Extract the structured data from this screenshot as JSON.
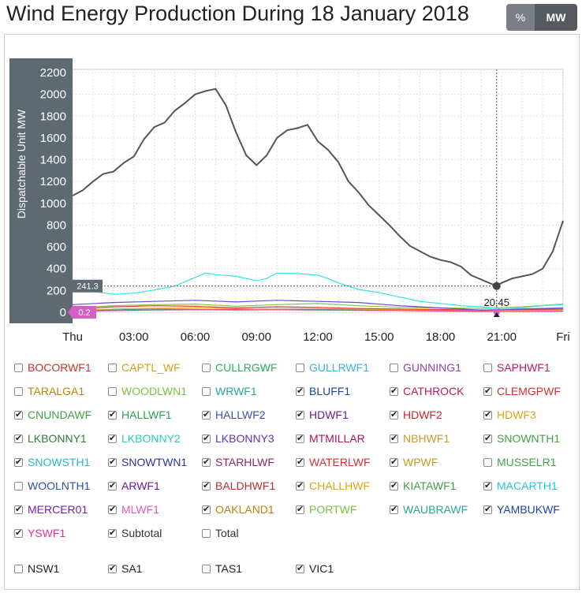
{
  "title": "Wind Energy Production During 18 January 2018",
  "toggle": {
    "percent_label": "%",
    "mw_label": "MW"
  },
  "chart_data": {
    "type": "line",
    "ylabel": "Dispatchable Unit MW",
    "ylim": [
      0,
      2200
    ],
    "yticks": [
      0,
      200,
      400,
      600,
      800,
      1000,
      1200,
      1400,
      1600,
      1800,
      2000,
      2200
    ],
    "xlim": [
      0,
      24
    ],
    "xticks": [
      {
        "x": 0,
        "label": "Thu"
      },
      {
        "x": 3,
        "label": "03:00"
      },
      {
        "x": 6,
        "label": "06:00"
      },
      {
        "x": 9,
        "label": "09:00"
      },
      {
        "x": 12,
        "label": "12:00"
      },
      {
        "x": 15,
        "label": "15:00"
      },
      {
        "x": 18,
        "label": "18:00"
      },
      {
        "x": 21,
        "label": "21:00"
      },
      {
        "x": 24,
        "label": "Fri"
      }
    ],
    "grid": true,
    "crosshair": {
      "x": 20.75,
      "x_label": "20:45",
      "y_label_upper": "241.3",
      "y_label_lower": "0.2"
    },
    "series": [
      {
        "color": "#555555",
        "points": [
          [
            0,
            1070
          ],
          [
            0.5,
            1120
          ],
          [
            1,
            1200
          ],
          [
            1.5,
            1270
          ],
          [
            2,
            1290
          ],
          [
            2.5,
            1370
          ],
          [
            3,
            1430
          ],
          [
            3.5,
            1590
          ],
          [
            4,
            1700
          ],
          [
            4.5,
            1740
          ],
          [
            5,
            1850
          ],
          [
            5.5,
            1920
          ],
          [
            6,
            2000
          ],
          [
            6.5,
            2030
          ],
          [
            7,
            2050
          ],
          [
            7.5,
            1900
          ],
          [
            8,
            1650
          ],
          [
            8.5,
            1440
          ],
          [
            9,
            1350
          ],
          [
            9.5,
            1440
          ],
          [
            10,
            1600
          ],
          [
            10.5,
            1670
          ],
          [
            11,
            1690
          ],
          [
            11.5,
            1720
          ],
          [
            12,
            1570
          ],
          [
            12.5,
            1490
          ],
          [
            13,
            1380
          ],
          [
            13.5,
            1200
          ],
          [
            14,
            1100
          ],
          [
            14.5,
            980
          ],
          [
            15,
            890
          ],
          [
            15.5,
            800
          ],
          [
            16,
            700
          ],
          [
            16.5,
            610
          ],
          [
            17,
            560
          ],
          [
            17.5,
            510
          ],
          [
            18,
            480
          ],
          [
            18.5,
            460
          ],
          [
            19,
            420
          ],
          [
            19.5,
            340
          ],
          [
            20,
            300
          ],
          [
            20.5,
            260
          ],
          [
            20.75,
            241
          ],
          [
            21,
            270
          ],
          [
            21.5,
            310
          ],
          [
            22,
            330
          ],
          [
            22.5,
            350
          ],
          [
            23,
            400
          ],
          [
            23.5,
            560
          ],
          [
            24,
            840
          ]
        ]
      },
      {
        "color": "#36e3e3",
        "points": [
          [
            0,
            200
          ],
          [
            1,
            190
          ],
          [
            2,
            165
          ],
          [
            3,
            175
          ],
          [
            4,
            205
          ],
          [
            5,
            240
          ],
          [
            6,
            320
          ],
          [
            6.5,
            360
          ],
          [
            7,
            345
          ],
          [
            8,
            330
          ],
          [
            9,
            290
          ],
          [
            9.5,
            310
          ],
          [
            10,
            360
          ],
          [
            11,
            355
          ],
          [
            12,
            340
          ],
          [
            12.5,
            310
          ],
          [
            13,
            270
          ],
          [
            14,
            210
          ],
          [
            15,
            180
          ],
          [
            16,
            140
          ],
          [
            17,
            100
          ],
          [
            18,
            80
          ],
          [
            19,
            60
          ],
          [
            20,
            50
          ],
          [
            21,
            30
          ],
          [
            22,
            40
          ],
          [
            23,
            60
          ],
          [
            24,
            70
          ]
        ]
      },
      {
        "color": "#6a4ad6",
        "points": [
          [
            0,
            70
          ],
          [
            2,
            90
          ],
          [
            4,
            100
          ],
          [
            6,
            110
          ],
          [
            8,
            95
          ],
          [
            10,
            110
          ],
          [
            12,
            100
          ],
          [
            14,
            90
          ],
          [
            16,
            60
          ],
          [
            18,
            40
          ],
          [
            20,
            20
          ],
          [
            22,
            30
          ],
          [
            24,
            40
          ]
        ]
      },
      {
        "color": "#8bc34a",
        "points": [
          [
            0,
            40
          ],
          [
            2,
            60
          ],
          [
            4,
            70
          ],
          [
            6,
            75
          ],
          [
            8,
            55
          ],
          [
            10,
            70
          ],
          [
            12,
            80
          ],
          [
            14,
            60
          ],
          [
            16,
            45
          ],
          [
            18,
            40
          ],
          [
            20,
            35
          ],
          [
            22,
            50
          ],
          [
            24,
            75
          ]
        ]
      },
      {
        "color": "#e53935",
        "points": [
          [
            0,
            30
          ],
          [
            2,
            50
          ],
          [
            4,
            60
          ],
          [
            6,
            55
          ],
          [
            8,
            40
          ],
          [
            10,
            50
          ],
          [
            12,
            45
          ],
          [
            14,
            35
          ],
          [
            16,
            30
          ],
          [
            18,
            25
          ],
          [
            20,
            20
          ],
          [
            22,
            25
          ],
          [
            24,
            30
          ]
        ]
      },
      {
        "color": "#ffa726",
        "points": [
          [
            0,
            20
          ],
          [
            3,
            35
          ],
          [
            6,
            40
          ],
          [
            9,
            30
          ],
          [
            12,
            35
          ],
          [
            15,
            25
          ],
          [
            18,
            20
          ],
          [
            21,
            15
          ],
          [
            24,
            20
          ]
        ]
      },
      {
        "color": "#ec407a",
        "points": [
          [
            0,
            10
          ],
          [
            4,
            20
          ],
          [
            8,
            25
          ],
          [
            12,
            20
          ],
          [
            16,
            15
          ],
          [
            20,
            8
          ],
          [
            24,
            10
          ]
        ]
      },
      {
        "color": "#26a69a",
        "points": [
          [
            0,
            15
          ],
          [
            4,
            30
          ],
          [
            8,
            20
          ],
          [
            12,
            25
          ],
          [
            16,
            20
          ],
          [
            20,
            10
          ],
          [
            24,
            25
          ]
        ]
      }
    ]
  },
  "units": [
    {
      "label": "BOCORWF1",
      "checked": false,
      "color": "#c0392b"
    },
    {
      "label": "CAPTL_WF",
      "checked": false,
      "color": "#d4a017"
    },
    {
      "label": "CULLRGWF",
      "checked": false,
      "color": "#27ae60"
    },
    {
      "label": "GULLRWF1",
      "checked": false,
      "color": "#3ab0d8"
    },
    {
      "label": "GUNNING1",
      "checked": false,
      "color": "#8e44ad"
    },
    {
      "label": "SAPHWF1",
      "checked": false,
      "color": "#c2185b"
    },
    {
      "label": "TARALGA1",
      "checked": false,
      "color": "#b8860b"
    },
    {
      "label": "WOODLWN1",
      "checked": false,
      "color": "#7cc242"
    },
    {
      "label": "WRWF1",
      "checked": false,
      "color": "#26a69a"
    },
    {
      "label": "BLUFF1",
      "checked": true,
      "color": "#1e3fa6"
    },
    {
      "label": "CATHROCK",
      "checked": true,
      "color": "#c2185b"
    },
    {
      "label": "CLEMGPWF",
      "checked": true,
      "color": "#d32f2f"
    },
    {
      "label": "CNUNDAWF",
      "checked": true,
      "color": "#43a047"
    },
    {
      "label": "HALLWF1",
      "checked": true,
      "color": "#2e9e4e"
    },
    {
      "label": "HALLWF2",
      "checked": true,
      "color": "#3d4db3"
    },
    {
      "label": "HDWF1",
      "checked": true,
      "color": "#6a1b9a"
    },
    {
      "label": "HDWF2",
      "checked": true,
      "color": "#c62828"
    },
    {
      "label": "HDWF3",
      "checked": true,
      "color": "#e0a21a"
    },
    {
      "label": "LKBONNY1",
      "checked": true,
      "color": "#2e7d32"
    },
    {
      "label": "LKBONNY2",
      "checked": true,
      "color": "#2ec4c4"
    },
    {
      "label": "LKBONNY3",
      "checked": true,
      "color": "#5e35b1"
    },
    {
      "label": "MTMILLAR",
      "checked": true,
      "color": "#ad1457"
    },
    {
      "label": "NBHWF1",
      "checked": true,
      "color": "#c8962d"
    },
    {
      "label": "SNOWNTH1",
      "checked": true,
      "color": "#43a047"
    },
    {
      "label": "SNOWSTH1",
      "checked": true,
      "color": "#2ab5c8"
    },
    {
      "label": "SNOWTWN1",
      "checked": true,
      "color": "#283593"
    },
    {
      "label": "STARHLWF",
      "checked": true,
      "color": "#8e2470"
    },
    {
      "label": "WATERLWF",
      "checked": true,
      "color": "#d32f2f"
    },
    {
      "label": "WPWF",
      "checked": true,
      "color": "#c69a1a"
    },
    {
      "label": "MUSSELR1",
      "checked": false,
      "color": "#43a047"
    },
    {
      "label": "WOOLNTH1",
      "checked": false,
      "color": "#2f4fb0"
    },
    {
      "label": "ARWF1",
      "checked": true,
      "color": "#6a1b9a"
    },
    {
      "label": "BALDHWF1",
      "checked": true,
      "color": "#b53030"
    },
    {
      "label": "CHALLHWF",
      "checked": true,
      "color": "#e0a21a"
    },
    {
      "label": "KIATAWF1",
      "checked": true,
      "color": "#43a047"
    },
    {
      "label": "MACARTH1",
      "checked": true,
      "color": "#26c6da"
    },
    {
      "label": "MERCER01",
      "checked": true,
      "color": "#7b1fa2"
    },
    {
      "label": "MLWF1",
      "checked": true,
      "color": "#e05cb0"
    },
    {
      "label": "OAKLAND1",
      "checked": true,
      "color": "#b8860b"
    },
    {
      "label": "PORTWF",
      "checked": true,
      "color": "#7cc242"
    },
    {
      "label": "WAUBRAWF",
      "checked": true,
      "color": "#26a69a"
    },
    {
      "label": "YAMBUKWF",
      "checked": true,
      "color": "#1e3fa6"
    },
    {
      "label": "YSWF1",
      "checked": true,
      "color": "#e0309a"
    },
    {
      "label": "Subtotal",
      "checked": true,
      "color": "#333333"
    },
    {
      "label": "Total",
      "checked": false,
      "color": "#333333"
    }
  ],
  "regions": [
    {
      "label": "NSW1",
      "checked": false
    },
    {
      "label": "SA1",
      "checked": true
    },
    {
      "label": "TAS1",
      "checked": false
    },
    {
      "label": "VIC1",
      "checked": true
    }
  ]
}
